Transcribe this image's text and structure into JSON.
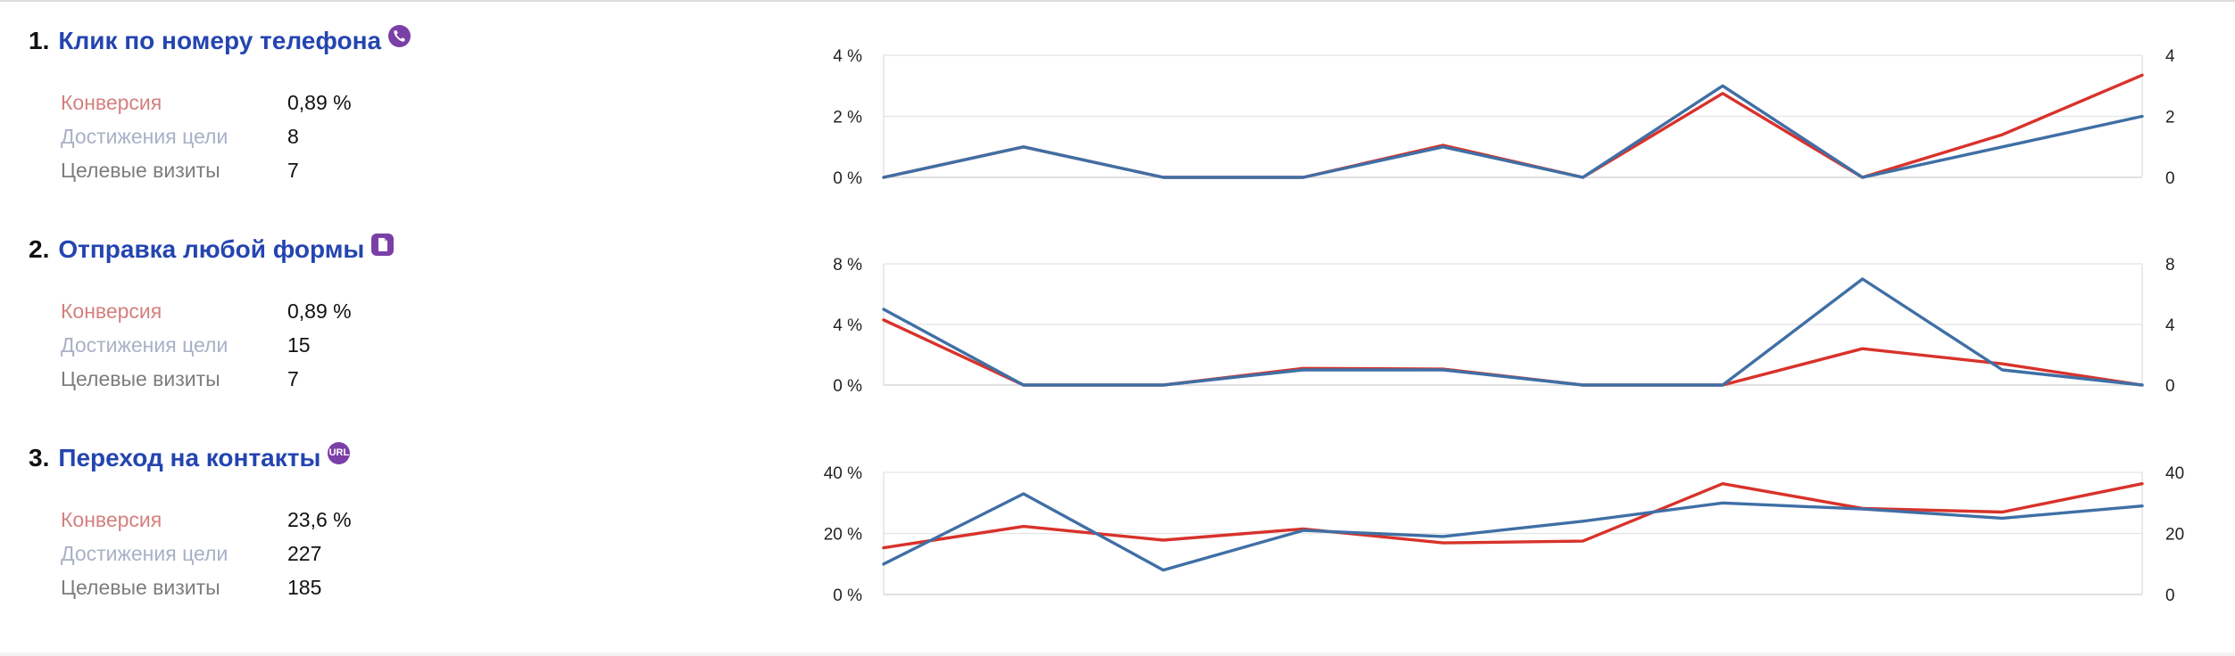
{
  "labels": {
    "conversion": "Конверсия",
    "reaches": "Достижения цели",
    "visits": "Целевые визиты"
  },
  "colors": {
    "red_series": "#d8322b",
    "blue_series": "#3f6fa5",
    "title": "#2445b0",
    "icon": "#7b3fa8"
  },
  "goals": [
    {
      "number": "1.",
      "title": "Клик по номеру телефона",
      "icon": "phone-icon",
      "conversion": "0,89 %",
      "reaches": "8",
      "visits": "7"
    },
    {
      "number": "2.",
      "title": "Отправка любой формы",
      "icon": "document-icon",
      "conversion": "0,89 %",
      "reaches": "15",
      "visits": "7"
    },
    {
      "number": "3.",
      "title": "Переход на контакты",
      "icon": "url-icon",
      "icon_text": "URL",
      "conversion": "23,6 %",
      "reaches": "227",
      "visits": "185"
    }
  ],
  "chart_data": [
    {
      "type": "line",
      "x": [
        1,
        2,
        3,
        4,
        5,
        6,
        7,
        8,
        9,
        10
      ],
      "y_left": {
        "ticks": [
          "0 %",
          "2 %",
          "4 %"
        ],
        "range": [
          0,
          4
        ]
      },
      "y_right": {
        "ticks": [
          "0",
          "2",
          "4"
        ],
        "range": [
          0,
          4
        ]
      },
      "grid": true,
      "series": [
        {
          "axis": "left",
          "color": "#d8322b",
          "values": [
            0,
            1.0,
            0,
            0,
            1.05,
            0,
            2.75,
            0,
            1.4,
            3.35
          ]
        },
        {
          "axis": "right",
          "color": "#3f6fa5",
          "values": [
            0,
            1,
            0,
            0,
            1,
            0,
            3,
            0,
            1,
            2
          ]
        }
      ]
    },
    {
      "type": "line",
      "x": [
        1,
        2,
        3,
        4,
        5,
        6,
        7,
        8,
        9,
        10
      ],
      "y_left": {
        "ticks": [
          "0 %",
          "4 %",
          "8 %"
        ],
        "range": [
          0,
          8
        ]
      },
      "y_right": {
        "ticks": [
          "0",
          "4",
          "8"
        ],
        "range": [
          0,
          8
        ]
      },
      "grid": true,
      "series": [
        {
          "axis": "left",
          "color": "#d8322b",
          "values": [
            4.3,
            0,
            0,
            1.1,
            1.05,
            0,
            0,
            2.4,
            1.4,
            0
          ]
        },
        {
          "axis": "right",
          "color": "#3f6fa5",
          "values": [
            5,
            0,
            0,
            1,
            1,
            0,
            0,
            7,
            1,
            0
          ]
        }
      ]
    },
    {
      "type": "line",
      "x": [
        1,
        2,
        3,
        4,
        5,
        6,
        7,
        8,
        9,
        10
      ],
      "y_left": {
        "ticks": [
          "0 %",
          "20 %",
          "40 %"
        ],
        "range": [
          0,
          40
        ]
      },
      "y_right": {
        "ticks": [
          "0",
          "20",
          "40"
        ],
        "range": [
          0,
          40
        ]
      },
      "grid": true,
      "series": [
        {
          "axis": "left",
          "color": "#d8322b",
          "values": [
            15.3,
            22.3,
            17.8,
            21.5,
            16.9,
            17.5,
            36.3,
            28.2,
            27,
            36.3
          ]
        },
        {
          "axis": "right",
          "color": "#3f6fa5",
          "values": [
            10,
            33,
            8,
            21,
            19,
            24,
            30,
            28,
            25,
            29
          ]
        }
      ]
    }
  ]
}
